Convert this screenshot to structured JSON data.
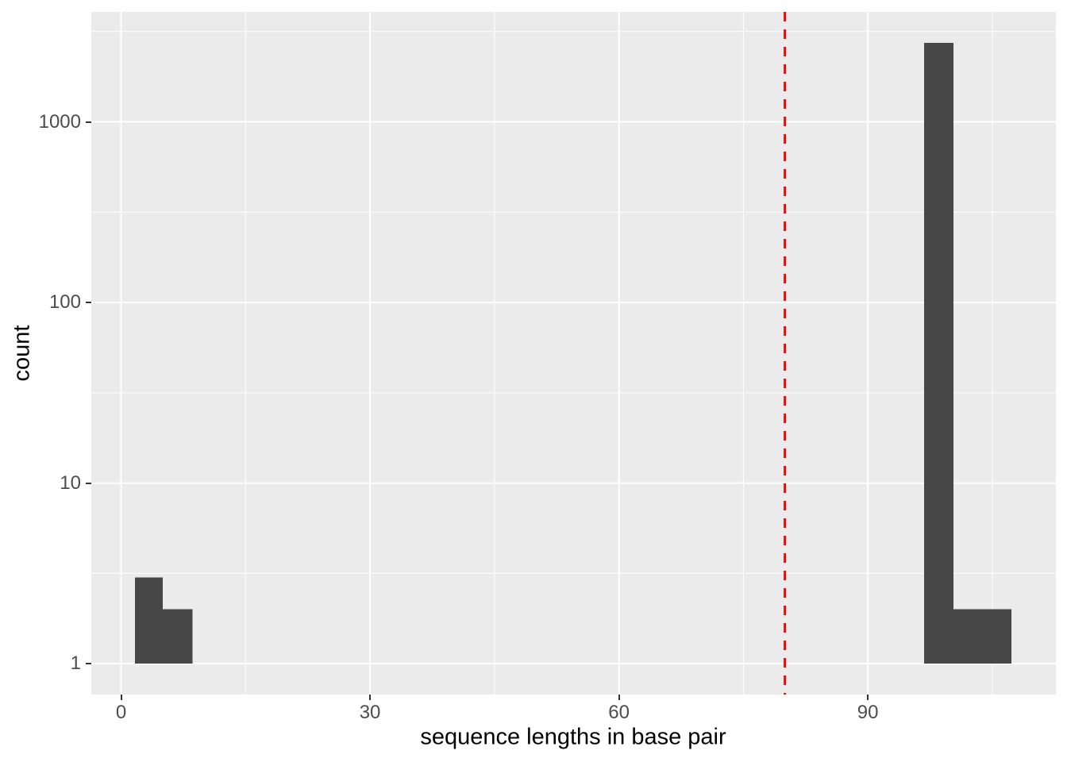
{
  "chart_data": {
    "type": "bar",
    "subtype": "histogram",
    "title": "",
    "xlabel": "sequence lengths in base pair",
    "ylabel": "count",
    "x_ticks": [
      0,
      30,
      60,
      90
    ],
    "x_minor_ticks": [
      15,
      45,
      75,
      105
    ],
    "x_range": [
      -3.59,
      112.66
    ],
    "y_scale": "log10",
    "y_ticks": [
      1,
      10,
      100,
      1000
    ],
    "y_minor_ticks_log": [
      0.5,
      1.5,
      2.5,
      3.5
    ],
    "y_log_range": [
      -0.171,
      3.609
    ],
    "grid": "on",
    "legend_position": "none",
    "bins": [
      {
        "x0": 1.65,
        "x1": 5.03,
        "count": 3
      },
      {
        "x0": 5.03,
        "x1": 8.63,
        "count": 2
      },
      {
        "x0": 96.8,
        "x1": 100.33,
        "count": 2740
      },
      {
        "x0": 100.33,
        "x1": 103.86,
        "count": 2
      },
      {
        "x0": 103.86,
        "x1": 107.3,
        "count": 2
      }
    ],
    "vline": {
      "x": 80,
      "style": "dashed",
      "color": "#FF0000",
      "width": 3
    },
    "colors": {
      "bar": "#474747",
      "panel_background": "#EBEBEB",
      "grid": "#FFFFFF",
      "tick_label": "#4D4D4D",
      "axis_title": "#000000",
      "tick_mark": "#333333",
      "figure_background": "#FFFFFF"
    }
  }
}
